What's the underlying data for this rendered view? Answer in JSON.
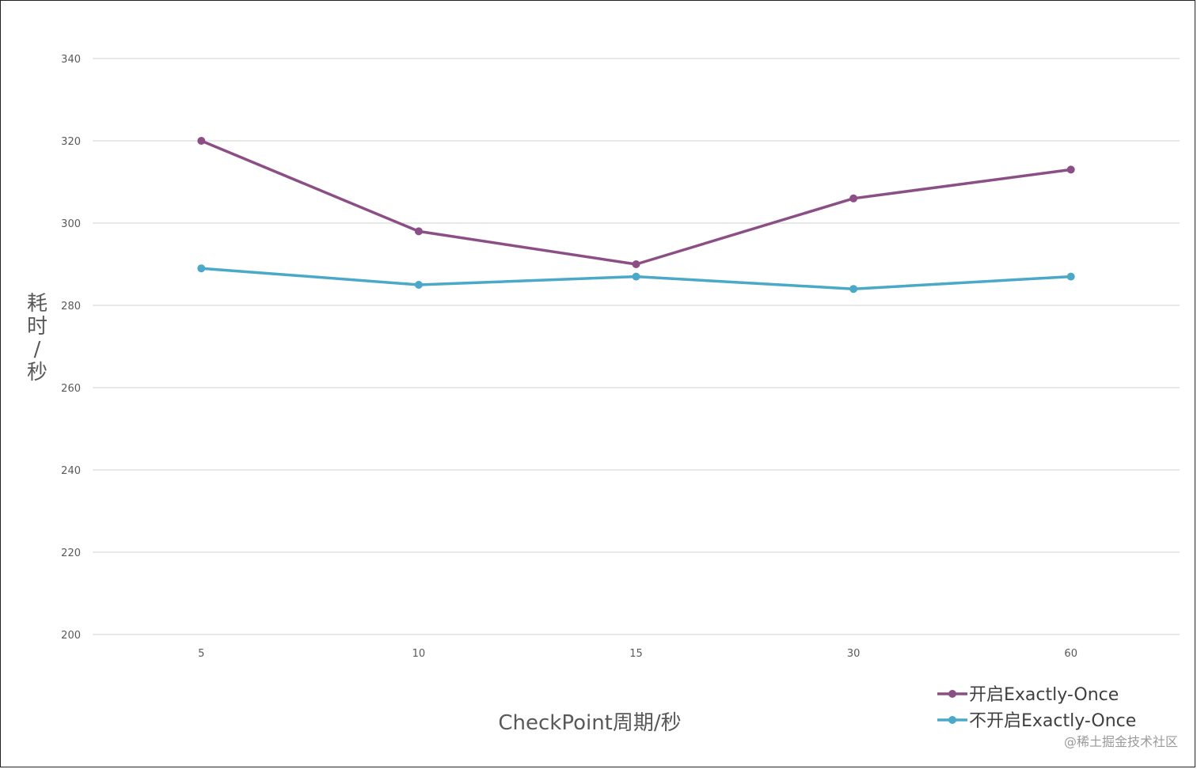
{
  "chart_data": {
    "type": "line",
    "categories": [
      "5",
      "10",
      "15",
      "30",
      "60"
    ],
    "series": [
      {
        "name": "开启Exactly-Once",
        "values": [
          320,
          298,
          290,
          306,
          313
        ],
        "color": "#8b4f86"
      },
      {
        "name": "不开启Exactly-Once",
        "values": [
          289,
          285,
          287,
          284,
          287
        ],
        "color": "#4aa8c8"
      }
    ],
    "xlabel": "CheckPoint周期/秒",
    "ylabel": "耗时/秒",
    "ylim": [
      200,
      340
    ],
    "yticks": [
      200,
      220,
      240,
      260,
      280,
      300,
      320,
      340
    ],
    "grid": true,
    "legend_position": "bottom-right",
    "grid_color": "#d9d9d9"
  },
  "watermark": "@稀土掘金技术社区"
}
